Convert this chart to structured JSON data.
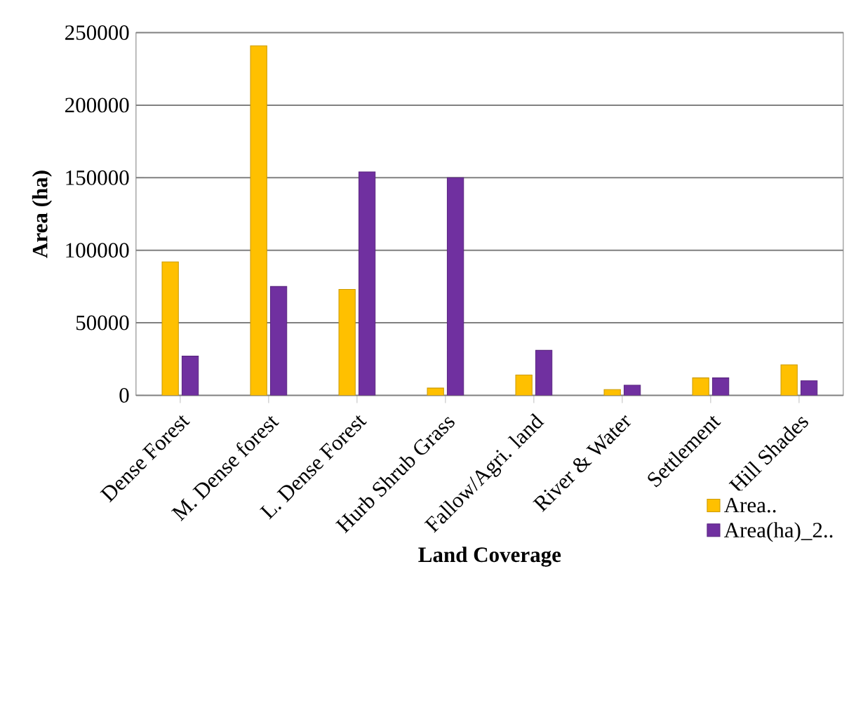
{
  "chart_data": {
    "type": "bar",
    "xlabel": "Land Coverage",
    "ylabel": "Area (ha)",
    "categories": [
      "Dense Forest",
      "M. Dense forest",
      "L. Dense Forest",
      "Hurb Shrub Grass",
      "Fallow/Agri. land",
      "River & Water",
      "Settlement",
      "Hill Shades"
    ],
    "series": [
      {
        "name": "Area..",
        "color": "#ffc000",
        "values": [
          92000,
          241000,
          73000,
          5000,
          14000,
          4000,
          12000,
          21000
        ]
      },
      {
        "name": "Area(ha)_2..",
        "color": "#7030a0",
        "values": [
          27000,
          75000,
          154000,
          150000,
          31000,
          7000,
          12000,
          10000
        ]
      }
    ],
    "ylim": [
      0,
      250000
    ],
    "yticks": [
      0,
      50000,
      100000,
      150000,
      200000,
      250000
    ],
    "grid": "y",
    "legend": "bottom right"
  }
}
